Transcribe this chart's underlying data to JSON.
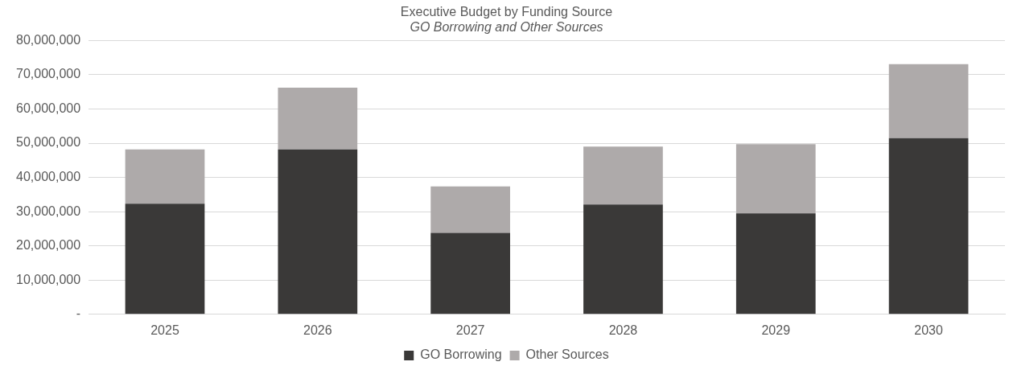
{
  "chart_data": {
    "type": "bar",
    "title": "Executive Budget by Funding Source",
    "subtitle": "GO Borrowing and Other Sources",
    "stacked": true,
    "categories": [
      "2025",
      "2026",
      "2027",
      "2028",
      "2029",
      "2030"
    ],
    "series": [
      {
        "name": "GO Borrowing",
        "color": "#3a3938",
        "values": [
          32300000,
          48200000,
          23800000,
          32100000,
          29500000,
          51500000
        ]
      },
      {
        "name": "Other Sources",
        "color": "#aeaaaa",
        "values": [
          15900000,
          18000000,
          13600000,
          16900000,
          20200000,
          21600000
        ]
      }
    ],
    "ylim": [
      0,
      80000000
    ],
    "yticks": [
      {
        "value": 0,
        "label": "-"
      },
      {
        "value": 10000000,
        "label": "10,000,000"
      },
      {
        "value": 20000000,
        "label": "20,000,000"
      },
      {
        "value": 30000000,
        "label": "30,000,000"
      },
      {
        "value": 40000000,
        "label": "40,000,000"
      },
      {
        "value": 50000000,
        "label": "50,000,000"
      },
      {
        "value": 60000000,
        "label": "60,000,000"
      },
      {
        "value": 70000000,
        "label": "70,000,000"
      },
      {
        "value": 80000000,
        "label": "80,000,000"
      }
    ],
    "grid": "y",
    "legend": "bottom"
  }
}
